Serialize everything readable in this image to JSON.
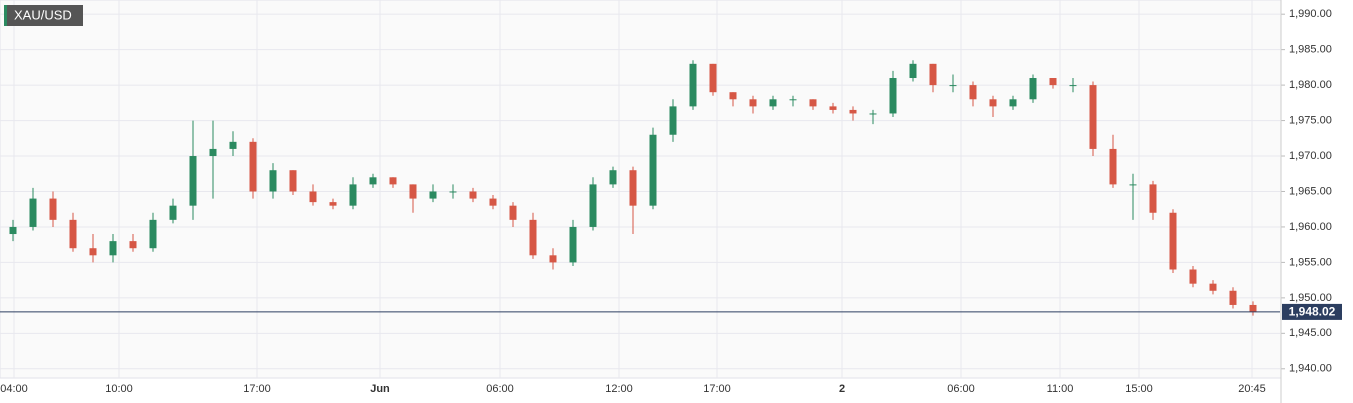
{
  "chart_data": {
    "type": "candlestick",
    "title": "XAU/USD",
    "up_color": "#2b8a60",
    "down_color": "#d65745",
    "grid": true,
    "xlim": [
      -0.65,
      63.35
    ],
    "ylim": [
      1938.7,
      1992
    ],
    "xticks": [
      {
        "value": 0.05,
        "label": "04:00"
      },
      {
        "value": 5.3,
        "label": "10:00"
      },
      {
        "value": 12.2,
        "label": "17:00"
      },
      {
        "value": 18.35,
        "label": "Jun",
        "bold": true
      },
      {
        "value": 24.35,
        "label": "06:00"
      },
      {
        "value": 30.3,
        "label": "12:00"
      },
      {
        "value": 35.2,
        "label": "17:00"
      },
      {
        "value": 41.45,
        "label": "2",
        "bold": true
      },
      {
        "value": 47.4,
        "label": "06:00"
      },
      {
        "value": 52.35,
        "label": "11:00"
      },
      {
        "value": 56.3,
        "label": "15:00"
      },
      {
        "value": 61.95,
        "label": "20:45"
      }
    ],
    "yticks": [
      {
        "value": 1940,
        "label": "1,940.00"
      },
      {
        "value": 1945,
        "label": "1,945.00"
      },
      {
        "value": 1950,
        "label": "1,950.00"
      },
      {
        "value": 1955,
        "label": "1,955.00"
      },
      {
        "value": 1960,
        "label": "1,960.00"
      },
      {
        "value": 1965,
        "label": "1,965.00"
      },
      {
        "value": 1970,
        "label": "1,970.00"
      },
      {
        "value": 1975,
        "label": "1,975.00"
      },
      {
        "value": 1980,
        "label": "1,980.00"
      },
      {
        "value": 1985,
        "label": "1,985.00"
      },
      {
        "value": 1990,
        "label": "1,990.00"
      }
    ],
    "last_price": {
      "value": 1948.02,
      "label": "1,948.02",
      "color": "#2c3e60"
    },
    "open": [
      1959,
      1960,
      1964,
      1961,
      1957,
      1956,
      1958,
      1957,
      1961,
      1963,
      1970,
      1971,
      1972,
      1965,
      1968,
      1965,
      1963.5,
      1963,
      1966,
      1967,
      1966,
      1964,
      1965,
      1965,
      1964,
      1963,
      1961,
      1956,
      1955,
      1960,
      1966,
      1968,
      1963,
      1973,
      1977,
      1983,
      1979,
      1978,
      1977,
      1978,
      1978,
      1977,
      1976.5,
      1976,
      1976,
      1981,
      1983,
      1980,
      1980,
      1978,
      1977,
      1978,
      1981,
      1980,
      1980,
      1971,
      1966,
      1966,
      1962,
      1954,
      1952,
      1951,
      1949
    ],
    "high": [
      1961,
      1965.5,
      1965,
      1962,
      1959,
      1959,
      1959,
      1962,
      1964,
      1975,
      1975,
      1973.5,
      1972.5,
      1969,
      1968,
      1966,
      1964,
      1967,
      1967.5,
      1967,
      1966,
      1966,
      1966,
      1965.5,
      1964.5,
      1963.5,
      1962,
      1957,
      1961,
      1967,
      1968.5,
      1968.5,
      1974,
      1978,
      1983.5,
      1983,
      1979,
      1978.5,
      1978.5,
      1978.5,
      1978,
      1977.5,
      1977,
      1976.5,
      1982,
      1983.5,
      1983,
      1981.5,
      1980.5,
      1978.5,
      1978.5,
      1981.5,
      1981,
      1981,
      1980.5,
      1973,
      1967.5,
      1966.5,
      1962.5,
      1954.5,
      1952.5,
      1951.5,
      1949.5
    ],
    "low": [
      1958,
      1959.5,
      1960,
      1956.5,
      1955,
      1955,
      1956.5,
      1956.5,
      1960.5,
      1961,
      1964,
      1970,
      1964,
      1964,
      1964.5,
      1963,
      1962.5,
      1962.5,
      1965.5,
      1965.5,
      1962,
      1963.5,
      1964,
      1963.5,
      1962.5,
      1960,
      1955.5,
      1954,
      1954.5,
      1959.5,
      1965.5,
      1959,
      1962.5,
      1972,
      1976.5,
      1978.5,
      1977,
      1976,
      1976.5,
      1977,
      1976.5,
      1976,
      1975,
      1974.5,
      1975.5,
      1980.5,
      1979,
      1979,
      1977,
      1975.5,
      1976.5,
      1977.5,
      1979.5,
      1979,
      1970,
      1965.5,
      1961,
      1961,
      1953.5,
      1951.5,
      1950.5,
      1948.5,
      1947.5
    ],
    "close": [
      1960,
      1964,
      1961,
      1957,
      1956,
      1958,
      1957,
      1961,
      1963,
      1970,
      1971,
      1972,
      1965,
      1968,
      1965,
      1963.5,
      1963,
      1966,
      1967,
      1966,
      1964,
      1965,
      1965,
      1964,
      1963,
      1961,
      1956,
      1955,
      1960,
      1966,
      1968,
      1963,
      1973,
      1977,
      1983,
      1979,
      1978,
      1977,
      1978,
      1978,
      1977,
      1976.5,
      1976,
      1976,
      1981,
      1983,
      1980,
      1980,
      1978,
      1977,
      1978,
      1981,
      1980,
      1980,
      1971,
      1966,
      1966,
      1962,
      1954,
      1952,
      1951,
      1949,
      1948.02
    ]
  }
}
